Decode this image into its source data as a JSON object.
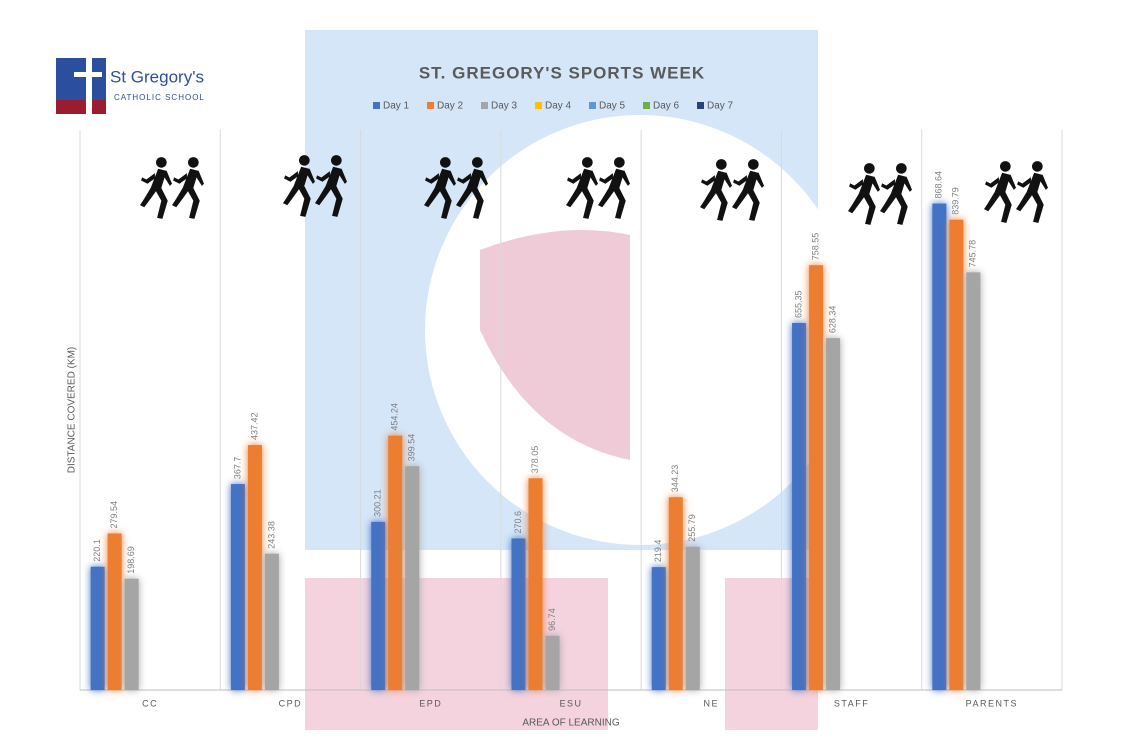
{
  "logo": {
    "name": "St Gregory's",
    "subtitle": "CATHOLIC SCHOOL"
  },
  "chart_data": {
    "type": "bar",
    "title": "ST. GREGORY'S SPORTS WEEK",
    "x_label": "AREA OF LEARNING",
    "y_label": "DISTANCE COVERED (KM)",
    "categories": [
      "CC",
      "CPD",
      "EPD",
      "ESU",
      "NE",
      "STAFF",
      "PARENTS"
    ],
    "series": [
      {
        "name": "Day 1",
        "color": "#4472c4",
        "values": [
          220.1,
          367.7,
          300.21,
          270.6,
          219.4,
          655.35,
          868.64
        ]
      },
      {
        "name": "Day 2",
        "color": "#ed7d31",
        "values": [
          279.54,
          437.42,
          454.24,
          378.05,
          344.23,
          758.55,
          839.79
        ]
      },
      {
        "name": "Day 3",
        "color": "#a5a5a5",
        "values": [
          198.69,
          243.38,
          399.54,
          96.74,
          255.79,
          628.34,
          745.78
        ]
      },
      {
        "name": "Day 4",
        "color": "#ffc000",
        "values": [
          null,
          null,
          null,
          null,
          null,
          null,
          null
        ]
      },
      {
        "name": "Day 5",
        "color": "#5b9bd5",
        "values": [
          null,
          null,
          null,
          null,
          null,
          null,
          null
        ]
      },
      {
        "name": "Day 6",
        "color": "#70ad47",
        "values": [
          null,
          null,
          null,
          null,
          null,
          null,
          null
        ]
      },
      {
        "name": "Day 7",
        "color": "#264478",
        "values": [
          null,
          null,
          null,
          null,
          null,
          null,
          null
        ]
      }
    ],
    "ylim": [
      0,
      1000
    ],
    "legend": "top",
    "data_labels": true
  }
}
